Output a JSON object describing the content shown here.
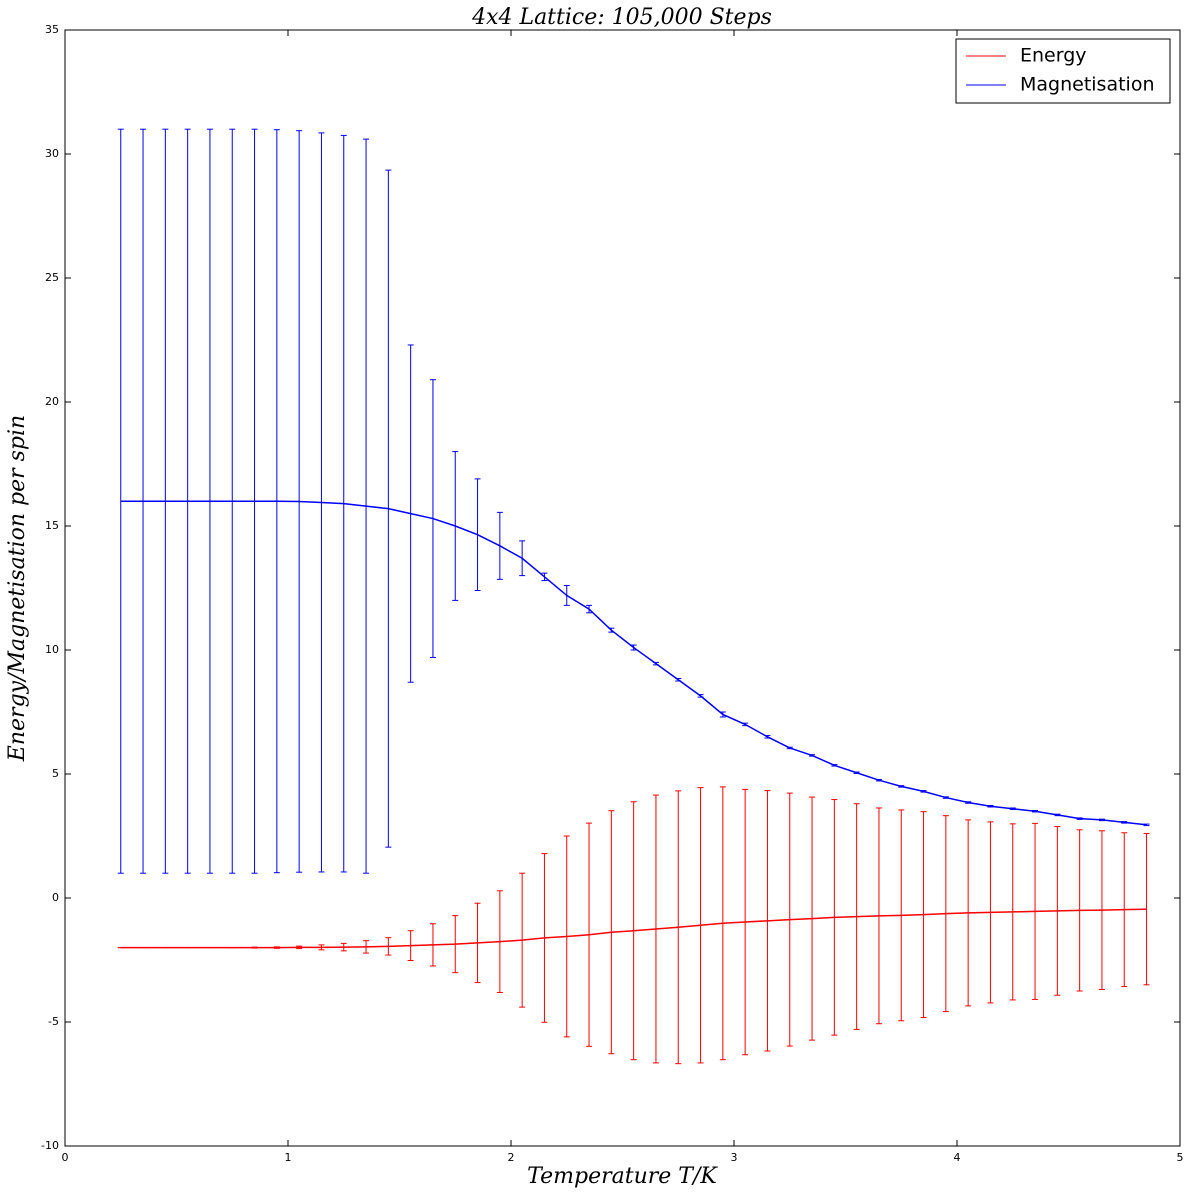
{
  "chart_data": {
    "type": "errorbar_line",
    "title": "4x4 Lattice: 105,000 Steps",
    "xlabel": "Temperature T/K",
    "ylabel": "Energy/Magnetisation per spin",
    "x": [
      0.25,
      0.35,
      0.45,
      0.55,
      0.65,
      0.75,
      0.85,
      0.95,
      1.05,
      1.15,
      1.25,
      1.35,
      1.45,
      1.55,
      1.65,
      1.75,
      1.85,
      1.95,
      2.05,
      2.15,
      2.25,
      2.35,
      2.45,
      2.55,
      2.65,
      2.75,
      2.85,
      2.95,
      3.05,
      3.15,
      3.25,
      3.35,
      3.45,
      3.55,
      3.65,
      3.75,
      3.85,
      3.95,
      4.05,
      4.15,
      4.25,
      4.35,
      4.45,
      4.55,
      4.65,
      4.75,
      4.85
    ],
    "series": [
      {
        "name": "Energy",
        "color": "#ff0000",
        "values": [
          -2,
          -2,
          -2,
          -2,
          -2,
          -2,
          -2,
          -2,
          -1.99,
          -1.99,
          -1.98,
          -1.97,
          -1.95,
          -1.92,
          -1.89,
          -1.86,
          -1.81,
          -1.76,
          -1.7,
          -1.61,
          -1.55,
          -1.48,
          -1.38,
          -1.32,
          -1.25,
          -1.18,
          -1.1,
          -1.02,
          -0.97,
          -0.92,
          -0.87,
          -0.83,
          -0.78,
          -0.75,
          -0.72,
          -0.7,
          -0.67,
          -0.63,
          -0.6,
          -0.58,
          -0.56,
          -0.54,
          -0.52,
          -0.5,
          -0.49,
          -0.47,
          -0.45
        ],
        "errors": [
          0,
          0,
          0,
          0,
          0,
          0,
          0.02,
          0.03,
          0.05,
          0.1,
          0.15,
          0.25,
          0.35,
          0.6,
          0.85,
          1.15,
          1.6,
          2.05,
          2.7,
          3.4,
          4.05,
          4.5,
          4.9,
          5.2,
          5.4,
          5.5,
          5.55,
          5.5,
          5.35,
          5.25,
          5.1,
          4.9,
          4.75,
          4.55,
          4.35,
          4.25,
          4.15,
          3.95,
          3.75,
          3.65,
          3.55,
          3.55,
          3.4,
          3.25,
          3.2,
          3.1,
          3.05
        ]
      },
      {
        "name": "Magnetisation",
        "color": "#0000ff",
        "values": [
          16,
          16,
          16,
          16,
          16,
          16,
          16,
          16,
          15.99,
          15.95,
          15.9,
          15.8,
          15.7,
          15.5,
          15.3,
          15.0,
          14.65,
          14.2,
          13.7,
          12.95,
          12.2,
          11.65,
          10.8,
          10.1,
          9.45,
          8.8,
          8.15,
          7.4,
          7.0,
          6.5,
          6.05,
          5.75,
          5.35,
          5.05,
          4.75,
          4.5,
          4.3,
          4.05,
          3.85,
          3.7,
          3.6,
          3.5,
          3.35,
          3.2,
          3.15,
          3.05,
          2.95
        ],
        "errors": [
          15,
          15,
          15,
          15,
          15,
          15,
          15,
          14.98,
          14.95,
          14.9,
          14.85,
          14.8,
          13.65,
          6.8,
          5.6,
          3.0,
          2.25,
          1.35,
          0.7,
          0.15,
          0.4,
          0.15,
          0.08,
          0.1,
          0.05,
          0.05,
          0.05,
          0.1,
          0.05,
          0.05,
          0.03,
          0.03,
          0.03,
          0.03,
          0.03,
          0.03,
          0.03,
          0.03,
          0.03,
          0.03,
          0.03,
          0.03,
          0.03,
          0.03,
          0.03,
          0.03,
          0.03
        ]
      }
    ],
    "xlim": [
      0,
      5
    ],
    "xticks": [
      0,
      1,
      2,
      3,
      4,
      5
    ],
    "ylim": [
      -10,
      35
    ],
    "yticks": [
      -10,
      -5,
      0,
      5,
      10,
      15,
      20,
      25,
      30,
      35
    ],
    "legend": "upper right"
  }
}
